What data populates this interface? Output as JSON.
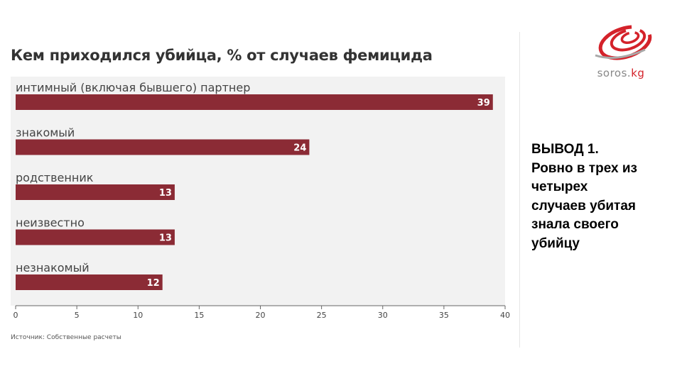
{
  "chart_data": {
    "type": "bar",
    "orientation": "horizontal",
    "title": "Кем приходился убийца, % от случаев фемицида",
    "categories": [
      "интимный (включая бывшего) партнер",
      "знакомый",
      "родственник",
      "неизвестно",
      "незнакомый"
    ],
    "values": [
      39,
      24,
      13,
      13,
      12
    ],
    "xlim": [
      0,
      40
    ],
    "xticks": [
      0,
      5,
      10,
      15,
      20,
      25,
      30,
      35,
      40
    ],
    "bar_color": "#8b2b35",
    "plot_background": "#f2f2f2",
    "grid": false,
    "legend": "none"
  },
  "source": "Источник: Собственные расчеты",
  "logo": {
    "name": "soros-logo-icon",
    "text_main": "soros.",
    "text_accent": "kg"
  },
  "conclusion": {
    "lines": [
      "ВЫВОД 1.",
      "Ровно в трех из",
      "четырех",
      "случаев убитая",
      "знала своего",
      "убийцу"
    ]
  }
}
